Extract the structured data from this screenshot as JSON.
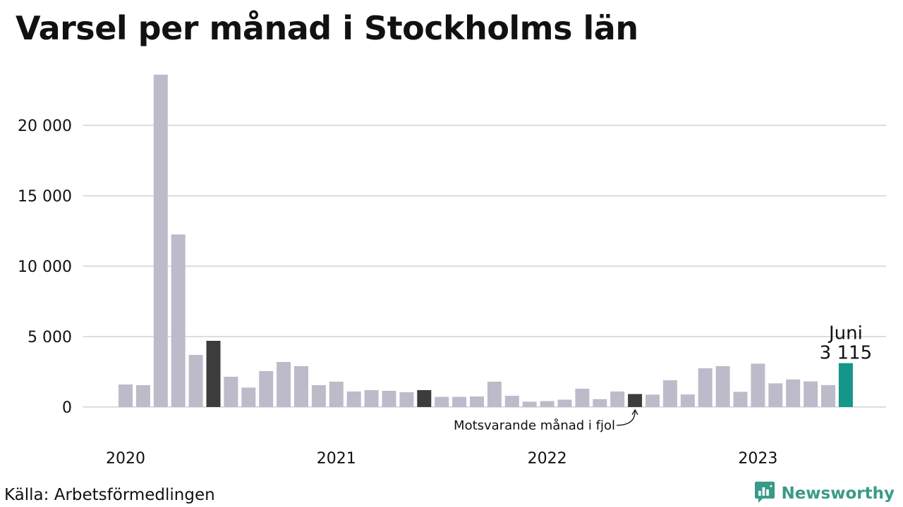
{
  "title": "Varsel per månad i Stockholms län",
  "source": "Källa: Arbetsförmedlingen",
  "brand": {
    "name": "Newsworthy",
    "icon": "newsworthy-logo-icon",
    "color": "#3a9a88"
  },
  "colors": {
    "bar": "#bdbbc9",
    "same_month_prior_years": "#3c3c3c",
    "latest": "#14968a",
    "grid": "#dcdce2"
  },
  "chart_data": {
    "type": "bar",
    "title": "Varsel per månad i Stockholms län",
    "xlabel": "",
    "ylabel": "",
    "ylim": [
      0,
      23600
    ],
    "yticks": [
      0,
      5000,
      10000,
      15000,
      20000
    ],
    "ytick_labels": [
      "0",
      "5 000",
      "10 000",
      "15 000",
      "20 000"
    ],
    "x_year_labels": [
      {
        "label": "2020",
        "category": "2020-01"
      },
      {
        "label": "2021",
        "category": "2021-01"
      },
      {
        "label": "2022",
        "category": "2022-01"
      },
      {
        "label": "2023",
        "category": "2023-01"
      }
    ],
    "categories": [
      "2020-01",
      "2020-02",
      "2020-03",
      "2020-04",
      "2020-05",
      "2020-06",
      "2020-07",
      "2020-08",
      "2020-09",
      "2020-10",
      "2020-11",
      "2020-12",
      "2021-01",
      "2021-02",
      "2021-03",
      "2021-04",
      "2021-05",
      "2021-06",
      "2021-07",
      "2021-08",
      "2021-09",
      "2021-10",
      "2021-11",
      "2021-12",
      "2022-01",
      "2022-02",
      "2022-03",
      "2022-04",
      "2022-05",
      "2022-06",
      "2022-07",
      "2022-08",
      "2022-09",
      "2022-10",
      "2022-11",
      "2022-12",
      "2023-01",
      "2023-02",
      "2023-03",
      "2023-04",
      "2023-05",
      "2023-06"
    ],
    "values": [
      1600,
      1550,
      23600,
      12250,
      3700,
      4700,
      2150,
      1380,
      2550,
      3200,
      2900,
      1550,
      1800,
      1100,
      1200,
      1150,
      1050,
      1200,
      720,
      720,
      750,
      1800,
      800,
      380,
      420,
      520,
      1300,
      560,
      1100,
      920,
      880,
      1900,
      890,
      2750,
      2900,
      1080,
      3080,
      1680,
      1960,
      1820,
      1560,
      3115
    ],
    "highlight_same_month": [
      "2020-06",
      "2021-06",
      "2022-06"
    ],
    "highlight_latest": "2023-06",
    "grid": true,
    "annotations": {
      "latest_month": "Juni",
      "latest_value": "3 115",
      "same_month_note": "Motsvarande månad i fjol"
    }
  }
}
